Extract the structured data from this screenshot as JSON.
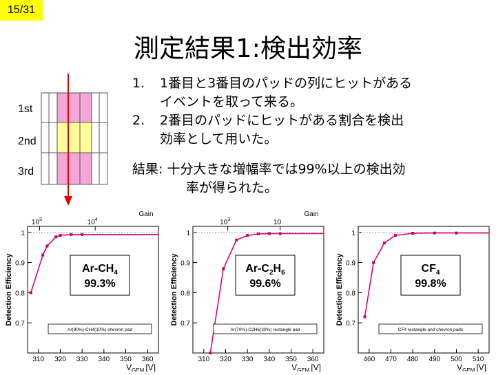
{
  "page_badge": "15/31",
  "title": "測定結果1:検出効率",
  "pad_labels": [
    "1st",
    "2nd",
    "3rd"
  ],
  "list_items": [
    {
      "num": "1.",
      "lines": [
        "1番目と3番目のパッドの列にヒットがある",
        "イベントを取って来る。"
      ]
    },
    {
      "num": "2.",
      "lines": [
        "2番目のパッドにヒットがある割合を検出",
        "効率として用いた。"
      ]
    }
  ],
  "result": {
    "line1": "結果: 十分大きな増幅率では99%以上の検出効",
    "line2": "率が得られた。"
  },
  "colors": {
    "badge": "#ffff00",
    "pad_pink": "#f4a6d7",
    "pad_yellow": "#ffff99",
    "arrow": "#e60000",
    "curve": "#e0007a",
    "points": "#c8005a"
  },
  "chart_data": [
    {
      "type": "scatter",
      "ylabel": "Detection Efficiency",
      "xlabel_main": "V",
      "xlabel_sub": "GEM",
      "xlabel_unit": "[V]",
      "gain_label": "Gain",
      "gain_ticks": [
        {
          "base": "10",
          "exp": "3",
          "x": 310.5
        },
        {
          "base": "10",
          "exp": "4",
          "x": 336
        }
      ],
      "x_ticks": [
        310,
        320,
        330,
        340,
        350,
        360
      ],
      "y_ticks": [
        0.7,
        0.8,
        0.9,
        1
      ],
      "xlim": [
        305,
        365
      ],
      "ylim": [
        0.6,
        1.02
      ],
      "gas_main": "Ar-CH",
      "gas_sub": "4",
      "gas_rest": "",
      "efficiency": "99.3%",
      "caption": "Ar(90%)-CH4(10%) chevron pad",
      "x": [
        306.5,
        312,
        314,
        318,
        320,
        325,
        330
      ],
      "y": [
        0.8,
        0.925,
        0.955,
        0.985,
        0.99,
        0.993,
        0.993
      ]
    },
    {
      "type": "scatter",
      "ylabel": "Detection Efficiency",
      "xlabel_main": "V",
      "xlabel_sub": "GEM",
      "xlabel_unit": "[V]",
      "gain_label": "Gain",
      "gain_ticks": [
        {
          "base": "10",
          "exp": "3",
          "x": 321
        },
        {
          "base": "10",
          "exp": "",
          "x": 345
        }
      ],
      "x_ticks": [
        310,
        320,
        330,
        340,
        350,
        360
      ],
      "y_ticks": [
        0.7,
        0.8,
        0.9,
        1
      ],
      "xlim": [
        305,
        365
      ],
      "ylim": [
        0.6,
        1.02
      ],
      "gas_main": "Ar-C",
      "gas_sub": "2",
      "gas_rest": "H",
      "gas_sub2": "6",
      "efficiency": "99.6%",
      "caption": "Ar(70%)-C2H6(30%) rectangle pad",
      "x": [
        313,
        319,
        325,
        330,
        335,
        340,
        345
      ],
      "y": [
        0.6,
        0.88,
        0.975,
        0.99,
        0.995,
        0.996,
        0.996
      ]
    },
    {
      "type": "scatter",
      "ylabel": "Detection Efficiency",
      "xlabel_main": "V",
      "xlabel_sub": "GEM",
      "xlabel_unit": "[V]",
      "gain_label": "",
      "gain_ticks": [],
      "x_ticks": [
        460,
        470,
        480,
        490,
        500,
        510
      ],
      "y_ticks": [
        0.7,
        0.8,
        0.9,
        1
      ],
      "xlim": [
        455,
        515
      ],
      "ylim": [
        0.6,
        1.02
      ],
      "gas_main": "CF",
      "gas_sub": "4",
      "gas_rest": "",
      "efficiency": "99.8%",
      "caption": "CF4 rectangle and chevron pads",
      "x": [
        458,
        462,
        467,
        472,
        480,
        490,
        500
      ],
      "y": [
        0.72,
        0.9,
        0.965,
        0.99,
        0.997,
        0.998,
        0.998
      ]
    }
  ]
}
